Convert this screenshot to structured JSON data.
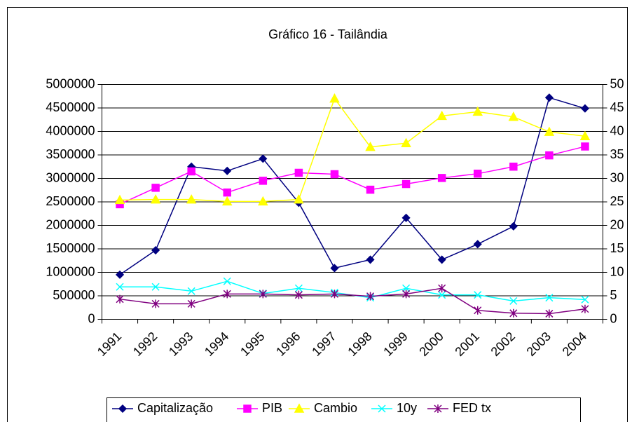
{
  "chart_data": {
    "type": "line",
    "title": "Gráfico 16 - Tailândia",
    "categories": [
      "1991",
      "1992",
      "1993",
      "1994",
      "1995",
      "1996",
      "1997",
      "1998",
      "1999",
      "2000",
      "2001",
      "2002",
      "2003",
      "2004"
    ],
    "ylim": [
      0,
      5000000
    ],
    "yticks": [
      0,
      500000,
      1000000,
      1500000,
      2000000,
      2500000,
      3000000,
      3500000,
      4000000,
      4500000,
      5000000
    ],
    "y2lim": [
      0,
      50
    ],
    "y2ticks": [
      0,
      5,
      10,
      15,
      20,
      25,
      30,
      35,
      40,
      45,
      50
    ],
    "grid": true,
    "legend": "bottom",
    "series": [
      {
        "name": "Capitalização",
        "color": "#000080",
        "marker": "diamond",
        "values": [
          950000,
          1470000,
          3250000,
          3160000,
          3420000,
          2480000,
          1090000,
          1270000,
          2160000,
          1270000,
          1600000,
          1980000,
          4720000,
          4490000
        ]
      },
      {
        "name": "PIB",
        "color": "#FF00FF",
        "marker": "square",
        "values": [
          2450000,
          2800000,
          3150000,
          2700000,
          2950000,
          3120000,
          3090000,
          2760000,
          2880000,
          3010000,
          3100000,
          3250000,
          3490000,
          3680000
        ]
      },
      {
        "name": "Cambio",
        "color": "#FFFF00",
        "marker": "triangle",
        "axis": "y2",
        "values": [
          25.4,
          25.5,
          25.5,
          25.1,
          25.1,
          25.5,
          47.0,
          36.7,
          37.5,
          43.3,
          44.2,
          43.1,
          39.9,
          39.0
        ]
      },
      {
        "name": "10y",
        "color": "#00FFFF",
        "marker": "x",
        "axis": "y2",
        "values": [
          6.9,
          6.9,
          6.0,
          8.1,
          5.5,
          6.6,
          5.7,
          4.6,
          6.6,
          5.2,
          5.2,
          3.9,
          4.6,
          4.2
        ]
      },
      {
        "name": "FED tx",
        "color": "#800080",
        "marker": "star",
        "axis": "y2",
        "values": [
          4.3,
          3.3,
          3.3,
          5.4,
          5.4,
          5.2,
          5.4,
          4.9,
          5.4,
          6.6,
          1.9,
          1.3,
          1.2,
          2.2
        ]
      }
    ]
  }
}
